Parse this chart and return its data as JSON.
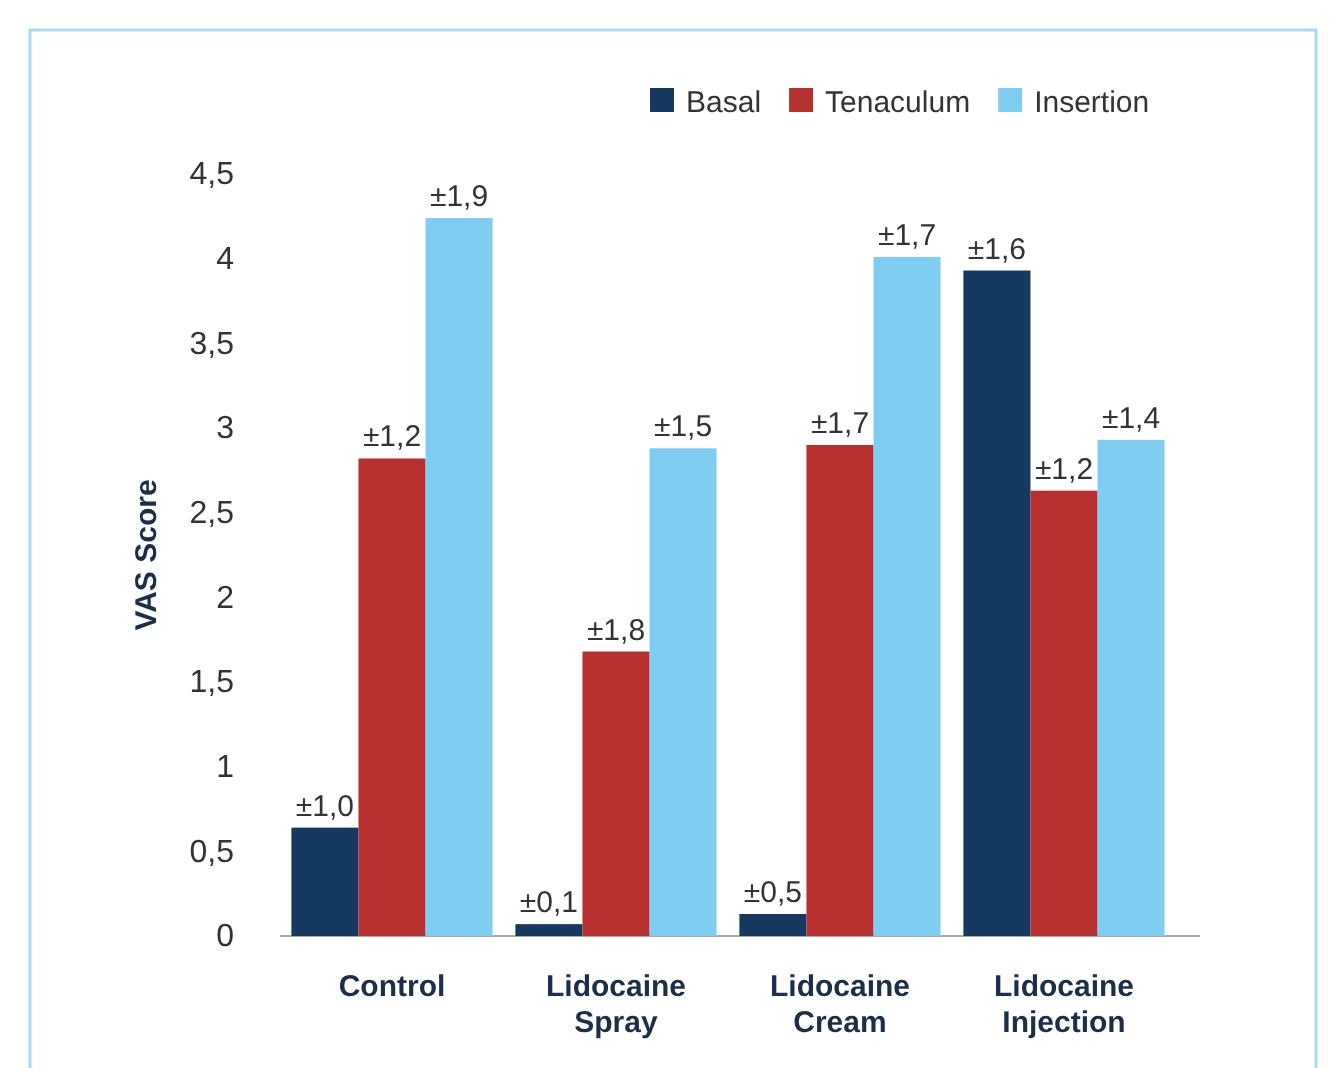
{
  "chart_data": {
    "type": "bar",
    "ylabel": "VAS Score",
    "categories": [
      "Control",
      "Lidocaine\nSpray",
      "Lidocaine\nCream",
      "Lidocaine\nInjection"
    ],
    "series": [
      {
        "name": "Basal",
        "color": "#163a5f",
        "values": [
          0.64,
          0.07,
          0.13,
          3.93
        ]
      },
      {
        "name": "Tenaculum",
        "color": "#b5302e",
        "values": [
          2.82,
          1.68,
          2.9,
          2.63
        ]
      },
      {
        "name": "Insertion",
        "color": "#7fcdf0",
        "values": [
          4.24,
          2.88,
          4.01,
          2.93
        ]
      }
    ],
    "annotations": [
      "±1,0",
      "±1,2",
      "±1,9",
      "±0,1",
      "±1,8",
      "±1,5",
      "±0,5",
      "±1,7",
      "±1,7",
      "±1,6",
      "±1,2",
      "±1,4"
    ],
    "ylim": [
      0,
      4.5
    ],
    "yticks": [
      0,
      {
        "value": 0.5,
        "label": "0,5"
      },
      1,
      {
        "value": 1.5,
        "label": "1,5"
      },
      2,
      {
        "value": 2.5,
        "label": "2,5"
      },
      3,
      {
        "value": 3.5,
        "label": "3,5"
      },
      4,
      {
        "value": 4.5,
        "label": "4,5"
      }
    ],
    "grid": false,
    "legend": "top right"
  }
}
